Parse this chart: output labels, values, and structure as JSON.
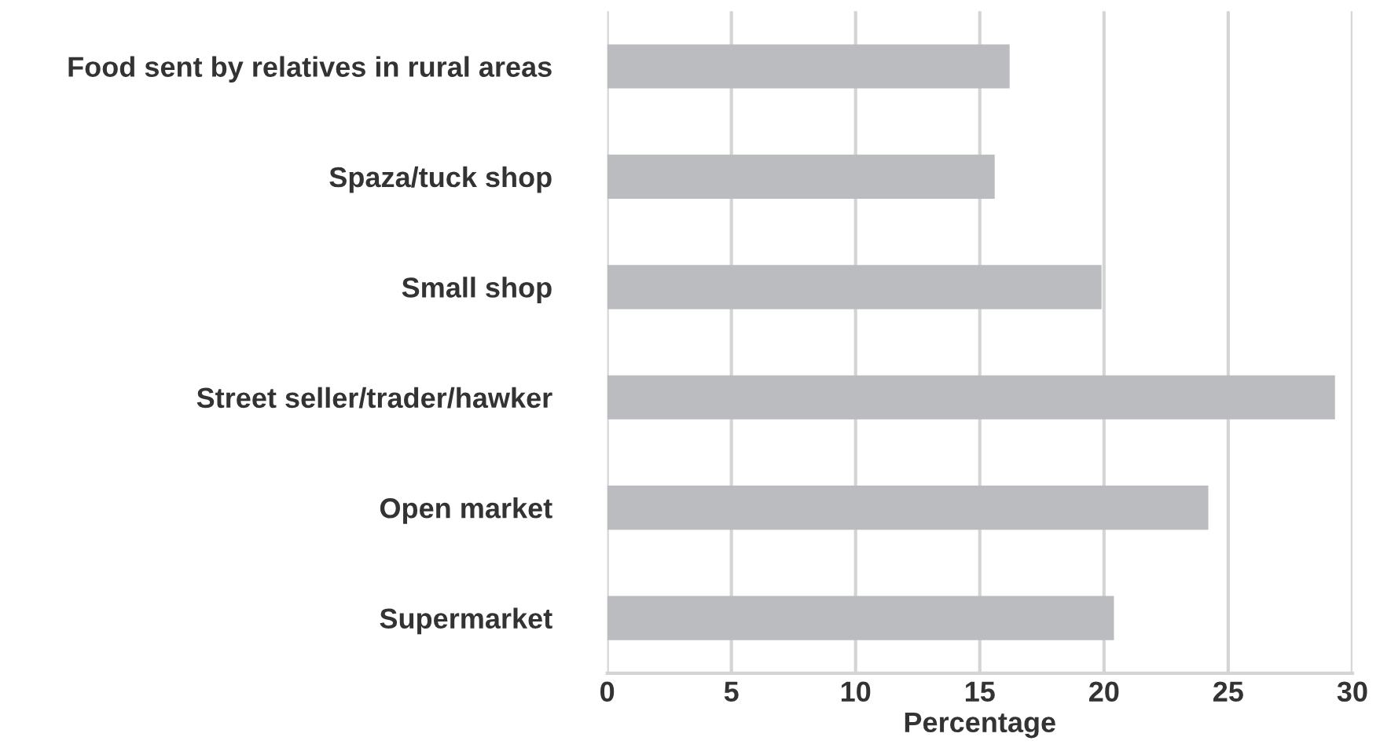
{
  "chart_data": {
    "type": "bar",
    "orientation": "horizontal",
    "xlabel": "Percentage",
    "categories": [
      "Food sent by relatives in rural areas",
      "Spaza/tuck shop",
      "Small shop",
      "Street seller/trader/hawker",
      "Open market",
      "Supermarket"
    ],
    "values": [
      16.2,
      15.6,
      19.9,
      29.3,
      24.2,
      20.4
    ],
    "color": "#bbbcc0",
    "xlim": [
      0,
      30
    ],
    "xticks": [
      0,
      5,
      10,
      15,
      20,
      25,
      30
    ],
    "grid": "x"
  }
}
